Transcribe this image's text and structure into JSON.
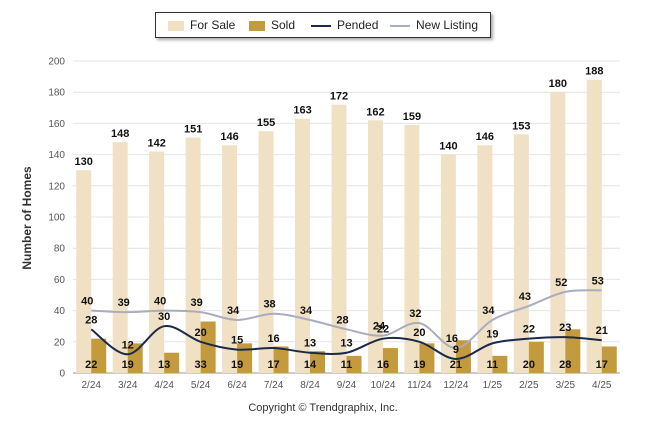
{
  "legend": {
    "for_sale": "For Sale",
    "sold": "Sold",
    "pended": "Pended",
    "new_listing": "New Listing"
  },
  "copyright": "Copyright © Trendgraphix, Inc.",
  "colors": {
    "for_sale": "#f0e0c4",
    "sold": "#c39a3e",
    "pended": "#1b2a4a",
    "new_listing": "#a9adbf",
    "grid": "#e4e4e4"
  },
  "chart_data": {
    "type": "bar",
    "ylabel": "Number of Homes",
    "xlabel": "",
    "ylim": [
      0,
      200
    ],
    "yticks": [
      0,
      20,
      40,
      60,
      80,
      100,
      120,
      140,
      160,
      180,
      200
    ],
    "grid": true,
    "legend_position": "top-center",
    "categories": [
      "2/24",
      "3/24",
      "4/24",
      "5/24",
      "6/24",
      "7/24",
      "8/24",
      "9/24",
      "10/24",
      "11/24",
      "12/24",
      "1/25",
      "2/25",
      "3/25",
      "4/25"
    ],
    "series": [
      {
        "name": "For Sale",
        "type": "bar",
        "values": [
          130,
          148,
          142,
          151,
          146,
          155,
          163,
          172,
          162,
          159,
          140,
          146,
          153,
          180,
          188
        ]
      },
      {
        "name": "Sold",
        "type": "bar",
        "values": [
          22,
          19,
          13,
          33,
          19,
          17,
          14,
          11,
          16,
          19,
          21,
          11,
          20,
          28,
          17
        ]
      },
      {
        "name": "Pended",
        "type": "line",
        "values": [
          28,
          12,
          30,
          20,
          15,
          16,
          13,
          13,
          22,
          20,
          9,
          19,
          22,
          23,
          21
        ]
      },
      {
        "name": "New Listing",
        "type": "line",
        "values": [
          40,
          39,
          40,
          39,
          34,
          38,
          34,
          28,
          24,
          32,
          16,
          34,
          43,
          52,
          53
        ]
      }
    ]
  }
}
